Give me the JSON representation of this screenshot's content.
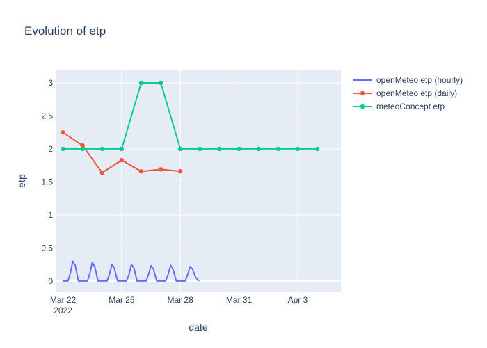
{
  "chart_data": {
    "type": "line",
    "title": "Evolution of etp",
    "xlabel": "date",
    "ylabel": "etp",
    "x_axis_type": "date",
    "xlim": [
      "2022-03-21T15:00",
      "2022-04-05T05:00"
    ],
    "ylim": [
      -0.17,
      3.2
    ],
    "x_ticks": [
      {
        "date": "2022-03-22",
        "label": "Mar 22",
        "sublabel": "2022"
      },
      {
        "date": "2022-03-25",
        "label": "Mar 25",
        "sublabel": ""
      },
      {
        "date": "2022-03-28",
        "label": "Mar 28",
        "sublabel": ""
      },
      {
        "date": "2022-03-31",
        "label": "Mar 31",
        "sublabel": ""
      },
      {
        "date": "2022-04-03",
        "label": "Apr 3",
        "sublabel": ""
      }
    ],
    "y_ticks": [
      {
        "value": 0,
        "label": "0"
      },
      {
        "value": 0.5,
        "label": "0.5"
      },
      {
        "value": 1,
        "label": "1"
      },
      {
        "value": 1.5,
        "label": "1.5"
      },
      {
        "value": 2,
        "label": "2"
      },
      {
        "value": 2.5,
        "label": "2.5"
      },
      {
        "value": 3,
        "label": "3"
      }
    ],
    "grid": true,
    "legend_position": "right",
    "series": [
      {
        "name": "openMeteo etp (hourly)",
        "color": "#636efa",
        "mode": "lines",
        "x": [
          "2022-03-22T00:00",
          "2022-03-22T06:00",
          "2022-03-22T09:00",
          "2022-03-22T12:00",
          "2022-03-22T15:00",
          "2022-03-22T19:00",
          "2022-03-23T00:00",
          "2022-03-23T06:00",
          "2022-03-23T09:00",
          "2022-03-23T12:00",
          "2022-03-23T15:00",
          "2022-03-23T19:00",
          "2022-03-24T00:00",
          "2022-03-24T06:00",
          "2022-03-24T09:00",
          "2022-03-24T12:00",
          "2022-03-24T15:00",
          "2022-03-24T19:00",
          "2022-03-25T00:00",
          "2022-03-25T06:00",
          "2022-03-25T09:00",
          "2022-03-25T12:00",
          "2022-03-25T15:00",
          "2022-03-25T19:00",
          "2022-03-26T00:00",
          "2022-03-26T06:00",
          "2022-03-26T09:00",
          "2022-03-26T12:00",
          "2022-03-26T15:00",
          "2022-03-26T19:00",
          "2022-03-27T00:00",
          "2022-03-27T06:00",
          "2022-03-27T09:00",
          "2022-03-27T12:00",
          "2022-03-27T15:00",
          "2022-03-27T19:00",
          "2022-03-28T00:00",
          "2022-03-28T06:00",
          "2022-03-28T09:00",
          "2022-03-28T12:00",
          "2022-03-28T15:00",
          "2022-03-28T19:00",
          "2022-03-28T23:00"
        ],
        "values": [
          0,
          0,
          0.12,
          0.3,
          0.24,
          0,
          0,
          0,
          0.12,
          0.28,
          0.22,
          0,
          0,
          0,
          0.1,
          0.25,
          0.2,
          0,
          0,
          0,
          0.1,
          0.25,
          0.2,
          0,
          0,
          0,
          0.1,
          0.23,
          0.18,
          0,
          0,
          0,
          0.1,
          0.24,
          0.18,
          0,
          0,
          0,
          0.1,
          0.22,
          0.18,
          0.05,
          0
        ]
      },
      {
        "name": "openMeteo etp (daily)",
        "color": "#ef553b",
        "mode": "lines+markers",
        "x": [
          "2022-03-22",
          "2022-03-23",
          "2022-03-24",
          "2022-03-25",
          "2022-03-26",
          "2022-03-27",
          "2022-03-28"
        ],
        "values": [
          2.25,
          2.05,
          1.64,
          1.83,
          1.66,
          1.69,
          1.66
        ]
      },
      {
        "name": "meteoConcept etp",
        "color": "#00cc96",
        "mode": "lines+markers",
        "x": [
          "2022-03-22",
          "2022-03-23",
          "2022-03-24",
          "2022-03-25",
          "2022-03-26",
          "2022-03-27",
          "2022-03-28",
          "2022-03-29",
          "2022-03-30",
          "2022-03-31",
          "2022-04-01",
          "2022-04-02",
          "2022-04-03",
          "2022-04-04"
        ],
        "values": [
          2,
          2,
          2,
          2,
          3,
          3,
          2,
          2,
          2,
          2,
          2,
          2,
          2,
          2
        ]
      }
    ]
  }
}
